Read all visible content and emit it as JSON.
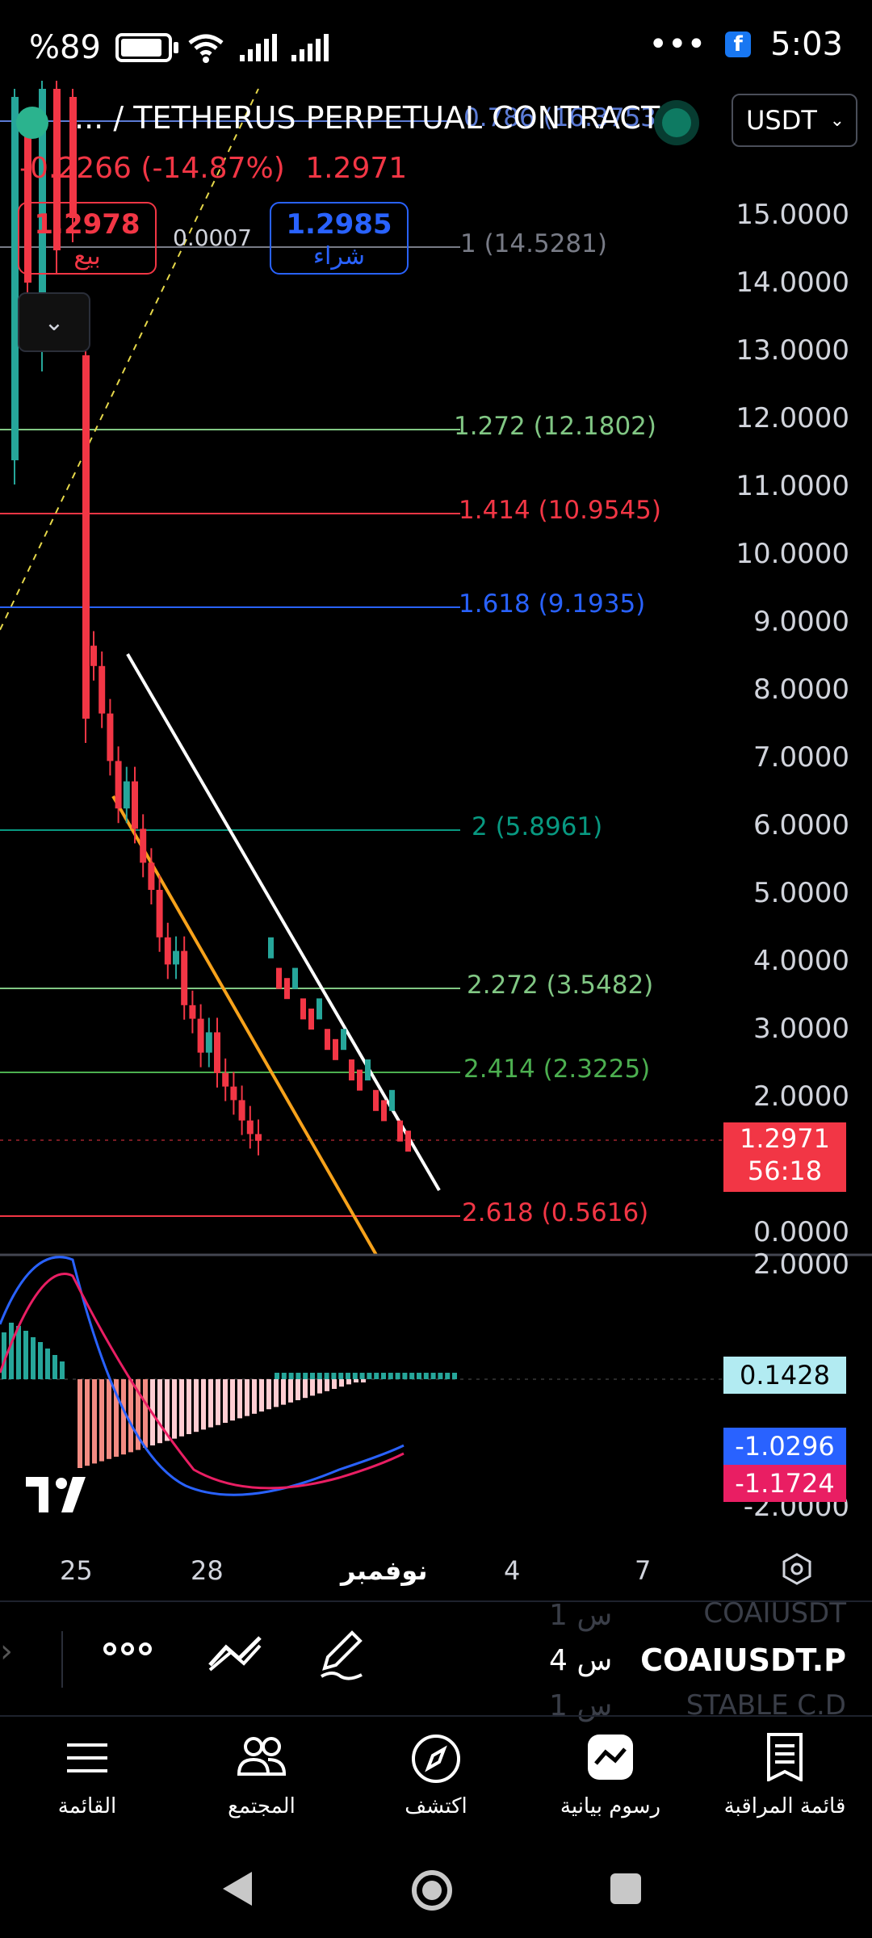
{
  "status_bar": {
    "battery_text": "%89",
    "battery_level": 0.89,
    "dots": "•••",
    "time": "5:03",
    "fb_badge": "f"
  },
  "header": {
    "symbol_title": "... / TETHERUS PERPETUAL CONTRACT",
    "change": "-0.2266 (-14.87%)",
    "last": "1.2971",
    "quote_currency": "USDT"
  },
  "trade": {
    "sell_price": "1.2978",
    "sell_label": "بيع",
    "spread": "0.0007",
    "buy_price": "1.2985",
    "buy_label": "شراء"
  },
  "price_axis": [
    "15.0000",
    "14.0000",
    "13.0000",
    "12.0000",
    "11.0000",
    "10.0000",
    "9.0000",
    "8.0000",
    "7.0000",
    "6.0000",
    "5.0000",
    "4.0000",
    "3.0000",
    "2.0000",
    "0.0000"
  ],
  "fib_levels": [
    {
      "text": "0.786 (16.3753)",
      "color": "#5b7bd5"
    },
    {
      "text": "1 (14.5281)",
      "color": "#787b86"
    },
    {
      "text": "1.272 (12.1802)",
      "color": "#81c784"
    },
    {
      "text": "1.414 (10.9545)",
      "color": "#f23645"
    },
    {
      "text": "1.618 (9.1935)",
      "color": "#2962ff"
    },
    {
      "text": "2 (5.8961)",
      "color": "#089981"
    },
    {
      "text": "2.272 (3.5482)",
      "color": "#81c784"
    },
    {
      "text": "2.414 (2.3225)",
      "color": "#4caf50"
    },
    {
      "text": "2.618 (0.5616)",
      "color": "#f23645"
    }
  ],
  "last_price_tag": {
    "price": "1.2971",
    "countdown": "56:18"
  },
  "indicator": {
    "axis_top": "2.0000",
    "axis_bottom": "-2.0000",
    "histogram": "0.1428",
    "macd": "-1.0296",
    "signal": "-1.1724"
  },
  "x_axis": [
    "25",
    "28",
    "نوفمبر",
    "4",
    "7"
  ],
  "watchlist": {
    "prev_symbol": "COAIUSDT",
    "prev_time": "1 س",
    "symbol": "COAIUSDT.P",
    "time": "4 س",
    "next_symbol": "STABLE C.D",
    "next_time": "1 س"
  },
  "bottom_nav": [
    {
      "label": "القائمة",
      "icon": "menu-icon"
    },
    {
      "label": "المجتمع",
      "icon": "community-icon"
    },
    {
      "label": "اكتشف",
      "icon": "compass-icon"
    },
    {
      "label": "رسوم بيانية",
      "icon": "chart-icon"
    },
    {
      "label": "قائمة المراقبة",
      "icon": "watchlist-icon"
    }
  ],
  "colors": {
    "up": "#26a69a",
    "down": "#f23645",
    "accent": "#2962ff"
  },
  "chart_data": {
    "type": "candlestick",
    "ylim": [
      0,
      16
    ],
    "x_ticks": [
      "25",
      "28",
      "نوفمبر",
      "4",
      "7"
    ],
    "close_approx": [
      14.5,
      11.0,
      8.3,
      7.6,
      6.9,
      6.2,
      6.6,
      5.9,
      5.4,
      5.0,
      4.3,
      3.9,
      4.1,
      3.3,
      3.1,
      2.6,
      2.9,
      2.3,
      2.1,
      1.9,
      1.6,
      1.4,
      1.3
    ],
    "series": [
      {
        "name": "MACD",
        "value": -1.0296
      },
      {
        "name": "Signal",
        "value": -1.1724
      },
      {
        "name": "Histogram",
        "value": 0.1428
      }
    ]
  }
}
